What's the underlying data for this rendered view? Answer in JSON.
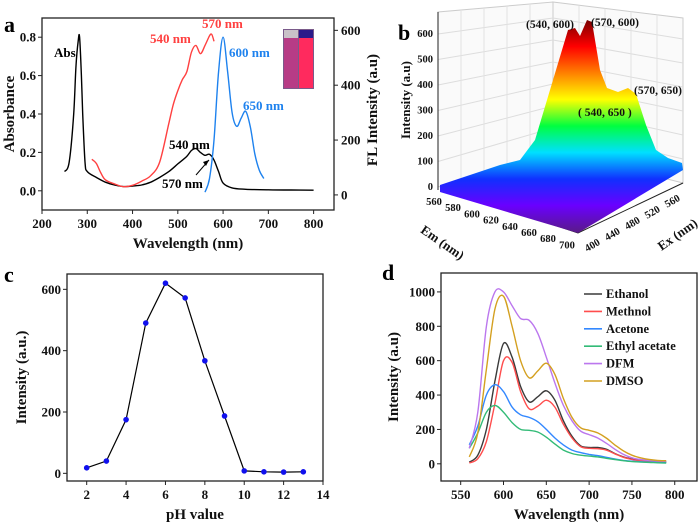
{
  "panels": [
    "a",
    "b",
    "c",
    "d"
  ],
  "chart_data": [
    {
      "panel": "a",
      "type": "line",
      "xlabel": "Wavelength (nm)",
      "ylabel": "Absorbance",
      "y2label": "FL Intensity (a.u)",
      "xlim": [
        200,
        845
      ],
      "ylim": [
        -0.1,
        0.9
      ],
      "y2lim": [
        -55,
        645
      ],
      "xticks": [
        "200",
        "300",
        "400",
        "500",
        "600",
        "700",
        "800"
      ],
      "yticks": [
        "0.0",
        "0.2",
        "0.4",
        "0.6",
        "0.8"
      ],
      "y2ticks": [
        "0",
        "200",
        "400",
        "600"
      ],
      "series": [
        {
          "name": "Abs",
          "axis": "left",
          "color": "#000000",
          "x": [
            250,
            260,
            270,
            275,
            280,
            283,
            287,
            290,
            295,
            300,
            320,
            340,
            360,
            380,
            400,
            420,
            440,
            460,
            480,
            500,
            520,
            530,
            540,
            550,
            560,
            570,
            580,
            590,
            600,
            620,
            650,
            700,
            750,
            800
          ],
          "y": [
            0.1,
            0.15,
            0.4,
            0.65,
            0.78,
            0.8,
            0.6,
            0.4,
            0.15,
            0.1,
            0.07,
            0.045,
            0.03,
            0.022,
            0.025,
            0.03,
            0.045,
            0.07,
            0.1,
            0.14,
            0.18,
            0.21,
            0.22,
            0.2,
            0.185,
            0.19,
            0.16,
            0.1,
            0.04,
            0.015,
            0.008,
            0.005,
            0.004,
            0.003
          ]
        },
        {
          "axis": "right",
          "color": "#ff4040",
          "x": [
            310,
            320,
            330,
            340,
            360,
            380,
            400,
            420,
            440,
            460,
            480,
            490,
            500,
            510,
            520,
            530,
            540,
            550,
            560,
            570,
            575,
            580
          ],
          "y": [
            130,
            115,
            80,
            55,
            40,
            30,
            35,
            50,
            70,
            120,
            260,
            330,
            380,
            420,
            450,
            520,
            545,
            515,
            545,
            580,
            585,
            560
          ]
        },
        {
          "axis": "right",
          "color": "#1e82ee",
          "x": [
            560,
            570,
            580,
            590,
            600,
            610,
            620,
            630,
            640,
            650,
            660,
            670,
            680,
            690
          ],
          "y": [
            10,
            60,
            200,
            450,
            575,
            450,
            300,
            250,
            280,
            305,
            250,
            150,
            90,
            60
          ]
        }
      ],
      "annotations": [
        {
          "text": "Abs",
          "color": "#000000"
        },
        {
          "text": "540 nm",
          "color": "#ff4040"
        },
        {
          "text": "570 nm",
          "color": "#ff4040"
        },
        {
          "text": "600 nm",
          "color": "#1e82ee"
        },
        {
          "text": "650 nm",
          "color": "#1e82ee"
        },
        {
          "text": "540 nm",
          "color": "#000000"
        },
        {
          "text": "570 nm",
          "color": "#000000"
        }
      ],
      "inset": "photo of two cuvettes (daylight magenta, UV red-pink)"
    },
    {
      "panel": "b",
      "type": "surface",
      "zlabel": "Intensity (a.u)",
      "xlabel": "Em (nm)",
      "ylabel": "Ex (nm)",
      "zticks": [
        "0",
        "100",
        "200",
        "300",
        "400",
        "500",
        "600"
      ],
      "em_ticks": [
        "560",
        "580",
        "600",
        "620",
        "640",
        "660",
        "680",
        "700"
      ],
      "ex_ticks": [
        "400",
        "440",
        "480",
        "520",
        "560"
      ],
      "peaks": [
        {
          "label": "(540, 600)",
          "ex": 540,
          "em": 600,
          "intensity": 610
        },
        {
          "label": "(570, 600)",
          "ex": 570,
          "em": 600,
          "intensity": 650
        },
        {
          "label": "(570, 650)",
          "ex": 570,
          "em": 650,
          "intensity": 390
        },
        {
          "label": "( 540, 650 )",
          "ex": 540,
          "em": 650,
          "intensity": 340
        }
      ],
      "colormap": [
        "#5a1a8a",
        "#6a00ff",
        "#1030ff",
        "#00e0ff",
        "#00ff40",
        "#ffff00",
        "#ff8000",
        "#ff0000",
        "#7a0000"
      ]
    },
    {
      "panel": "c",
      "type": "line",
      "xlabel": "pH value",
      "ylabel": "Intensity (a.u.)",
      "xlim": [
        1,
        14
      ],
      "ylim": [
        -25,
        650
      ],
      "xticks": [
        "2",
        "4",
        "6",
        "8",
        "10",
        "12",
        "14"
      ],
      "yticks": [
        "0",
        "200",
        "400",
        "600"
      ],
      "series": [
        {
          "color": "#000000",
          "marker_color": "#1010ee",
          "x": [
            2,
            3,
            4,
            5,
            6,
            7,
            8,
            9,
            10,
            11,
            12,
            13
          ],
          "y": [
            18,
            40,
            175,
            490,
            620,
            572,
            367,
            187,
            8,
            5,
            4,
            5
          ]
        }
      ]
    },
    {
      "panel": "d",
      "type": "line",
      "xlabel": "Wavelength (nm)",
      "ylabel": "Intensity (a.u)",
      "xlim": [
        527,
        826
      ],
      "ylim": [
        -100,
        1110
      ],
      "xticks": [
        "550",
        "600",
        "650",
        "700",
        "750",
        "800"
      ],
      "yticks": [
        "0",
        "200",
        "400",
        "600",
        "800",
        "1000"
      ],
      "legend": "top-right",
      "x": [
        560,
        570,
        580,
        590,
        600,
        610,
        620,
        630,
        640,
        650,
        660,
        670,
        680,
        690,
        700,
        710,
        720,
        730,
        740,
        750,
        760,
        770,
        780,
        790
      ],
      "series": [
        {
          "name": "Ethanol",
          "color": "#3a3a3a",
          "y": [
            10,
            50,
            200,
            480,
            700,
            620,
            450,
            360,
            390,
            425,
            370,
            250,
            160,
            105,
            95,
            95,
            85,
            60,
            40,
            28,
            20,
            15,
            12,
            10
          ]
        },
        {
          "name": "Methnol",
          "color": "#ff4d4d",
          "y": [
            5,
            30,
            130,
            350,
            600,
            590,
            420,
            320,
            335,
            370,
            330,
            230,
            150,
            100,
            90,
            88,
            80,
            58,
            38,
            25,
            18,
            14,
            11,
            10
          ]
        },
        {
          "name": "Acetone",
          "color": "#3388ff",
          "y": [
            110,
            220,
            400,
            460,
            420,
            330,
            285,
            270,
            245,
            200,
            150,
            110,
            80,
            65,
            55,
            48,
            38,
            28,
            20,
            15,
            12,
            10,
            8,
            7
          ]
        },
        {
          "name": "Ethyl acetate",
          "color": "#33bb77",
          "y": [
            90,
            180,
            300,
            340,
            300,
            240,
            200,
            195,
            185,
            155,
            115,
            80,
            60,
            50,
            45,
            40,
            32,
            25,
            18,
            13,
            10,
            8,
            6,
            5
          ]
        },
        {
          "name": "DFM",
          "color": "#bb77ee",
          "y": [
            90,
            300,
            800,
            1000,
            1000,
            920,
            845,
            835,
            760,
            620,
            470,
            340,
            250,
            190,
            170,
            150,
            120,
            85,
            55,
            35,
            25,
            20,
            17,
            15
          ]
        },
        {
          "name": "DMSO",
          "color": "#d4a020",
          "y": [
            40,
            180,
            550,
            900,
            975,
            800,
            600,
            500,
            540,
            585,
            520,
            380,
            270,
            210,
            195,
            180,
            150,
            110,
            75,
            50,
            35,
            25,
            20,
            18
          ]
        }
      ]
    }
  ]
}
